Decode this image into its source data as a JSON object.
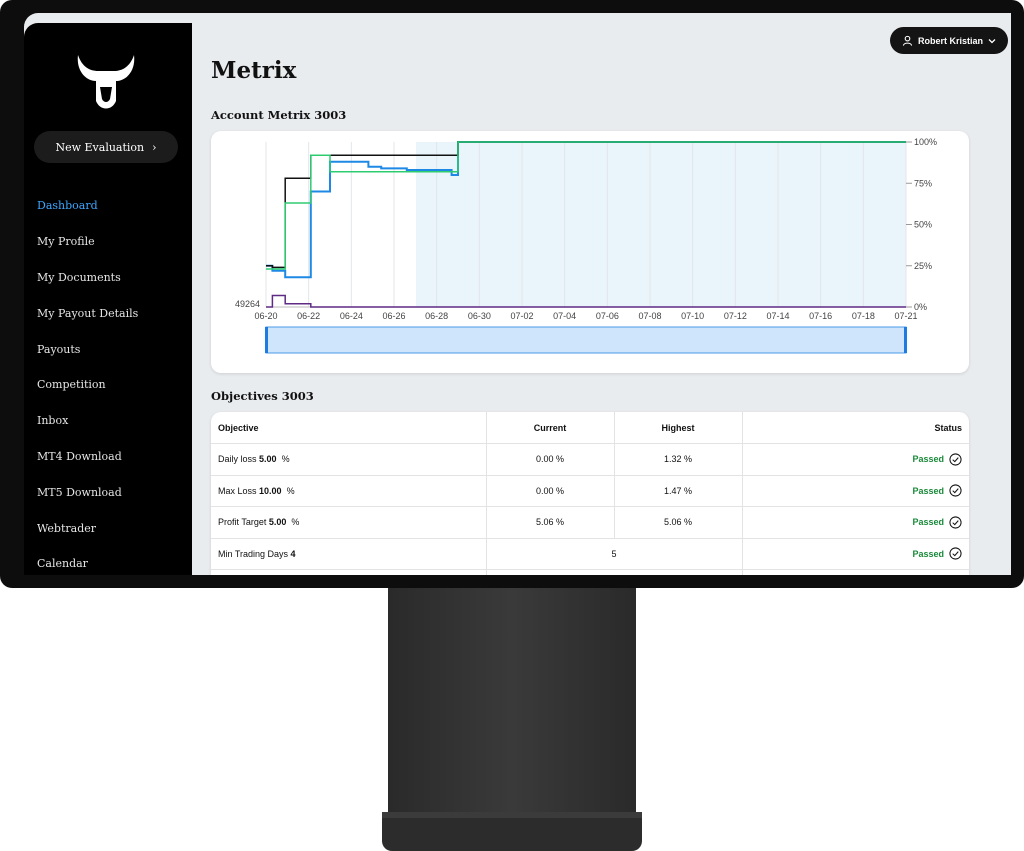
{
  "sidebar": {
    "new_evaluation_label": "New Evaluation",
    "items": [
      {
        "label": "Dashboard",
        "active": true
      },
      {
        "label": "My Profile"
      },
      {
        "label": "My Documents"
      },
      {
        "label": "My Payout Details"
      },
      {
        "label": "Payouts"
      },
      {
        "label": "Competition"
      },
      {
        "label": "Inbox"
      },
      {
        "label": "MT4 Download"
      },
      {
        "label": "MT5 Download"
      },
      {
        "label": "Webtrader"
      },
      {
        "label": "Calendar"
      }
    ]
  },
  "header": {
    "user_name": "Robert Kristian"
  },
  "page_title": "Metrix",
  "account_section_title": "Account Metrix 3003",
  "objectives_section_title": "Objectives 3003",
  "chart_data": {
    "type": "line",
    "x_ticks": [
      "06-20",
      "06-22",
      "06-24",
      "06-26",
      "06-28",
      "06-30",
      "07-02",
      "07-04",
      "07-06",
      "07-08",
      "07-10",
      "07-12",
      "07-14",
      "07-16",
      "07-18",
      "07-21"
    ],
    "y_ticks_right": [
      "100%",
      "75%",
      "50%",
      "25%",
      "0%"
    ],
    "y_left_label": "49264",
    "series": [
      {
        "color": "#1e88e5",
        "values": [
          25,
          22,
          18,
          70,
          88,
          85,
          84,
          83,
          80,
          100,
          100,
          100
        ]
      },
      {
        "color": "#111111",
        "values": [
          25,
          24,
          78,
          92,
          92,
          92,
          92,
          92,
          92,
          100,
          100,
          100
        ]
      },
      {
        "color": "#2ecc71",
        "values": [
          23,
          23,
          63,
          92,
          82,
          82,
          82,
          82,
          82,
          100,
          100,
          100
        ]
      },
      {
        "color": "#5e2a84",
        "values": [
          0,
          7,
          2,
          0,
          0,
          0,
          0,
          0,
          0,
          0,
          0,
          0
        ]
      }
    ],
    "ylim": [
      0,
      100
    ]
  },
  "objectives": {
    "headers": {
      "objective": "Objective",
      "current": "Current",
      "highest": "Highest",
      "status": "Status"
    },
    "rows": [
      {
        "name": "Daily loss",
        "target": "5.00",
        "unit": "%",
        "current": "0.00 %",
        "highest": "1.32 %",
        "status": "Passed"
      },
      {
        "name": "Max Loss",
        "target": "10.00",
        "unit": "%",
        "current": "0.00 %",
        "highest": "1.47 %",
        "status": "Passed"
      },
      {
        "name": "Profit Target",
        "target": "5.00",
        "unit": "%",
        "current": "5.06 %",
        "highest": "5.06 %",
        "status": "Passed"
      },
      {
        "name": "Min Trading Days",
        "target": "4",
        "unit": "",
        "current": "5",
        "highest": "",
        "status": "Passed"
      }
    ]
  }
}
